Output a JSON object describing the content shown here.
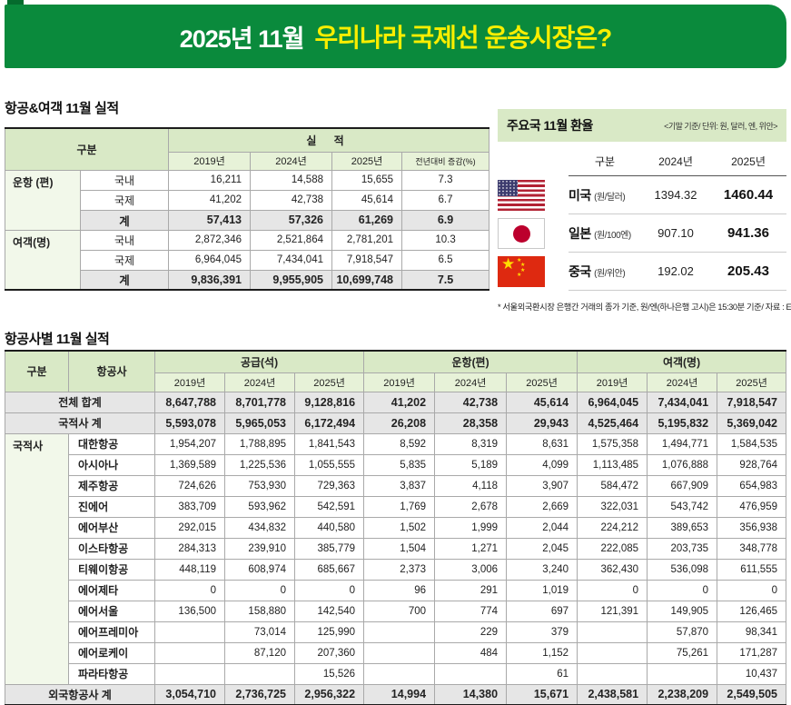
{
  "colors": {
    "banner_green": "#0a8a3c",
    "banner_yellow": "#f9ee00",
    "header_green": "#d9e9c6",
    "subheader_green": "#e7f2d8",
    "label_green": "#f2f8ea",
    "total_gray": "#e6e6e6"
  },
  "banner": {
    "prefix": "2025년 11월",
    "title": "우리나라 국제선 운송시장은?"
  },
  "summary_table": {
    "title": "항공&여객 11월 실적",
    "header": {
      "gubun": "구분",
      "siljeok": "실 적",
      "years": [
        "2019년",
        "2024년",
        "2025년",
        "전년대비 증감(%)"
      ]
    },
    "groups": [
      {
        "label": "운항 (편)",
        "rows": [
          {
            "name": "국내",
            "values": [
              "16,211",
              "14,588",
              "15,655",
              "7.3"
            ],
            "total": false
          },
          {
            "name": "국제",
            "values": [
              "41,202",
              "42,738",
              "45,614",
              "6.7"
            ],
            "total": false
          },
          {
            "name": "계",
            "values": [
              "57,413",
              "57,326",
              "61,269",
              "6.9"
            ],
            "total": true
          }
        ]
      },
      {
        "label": "여객(명)",
        "rows": [
          {
            "name": "국내",
            "values": [
              "2,872,346",
              "2,521,864",
              "2,781,201",
              "10.3"
            ],
            "total": false
          },
          {
            "name": "국제",
            "values": [
              "6,964,045",
              "7,434,041",
              "7,918,547",
              "6.5"
            ],
            "total": false
          },
          {
            "name": "계",
            "values": [
              "9,836,391",
              "9,955,905",
              "10,699,748",
              "7.5"
            ],
            "total": true
          }
        ]
      }
    ]
  },
  "fx_panel": {
    "title": "주요국 11월 환율",
    "note": "<기말 기준/ 단위: 원, 달러, 엔, 위안>",
    "columns": [
      "구분",
      "2024년",
      "2025년"
    ],
    "rows": [
      {
        "flag": "us",
        "country": "미국",
        "unit": "(원/달러)",
        "y2024": "1394.32",
        "y2025": "1460.44"
      },
      {
        "flag": "jp",
        "country": "일본",
        "unit": "(원/100엔)",
        "y2024": "907.10",
        "y2025": "941.36"
      },
      {
        "flag": "cn",
        "country": "중국",
        "unit": "(원/위안)",
        "y2024": "192.02",
        "y2025": "205.43"
      }
    ],
    "footnote": "* 서울외국환시장 은행간 거래의 종가 기준, 원/엔(하나은행 고시)은 15:30분 기준/ 자료 : ECOS"
  },
  "airline_table": {
    "title": "항공사별 11월 실적",
    "gubun_label": "구분",
    "airline_label": "항공사",
    "national_label": "국적사",
    "col_groups": [
      "공급(석)",
      "운항(편)",
      "여객(명)"
    ],
    "years": [
      "2019년",
      "2024년",
      "2025년"
    ],
    "rows": [
      {
        "label": "전체 합계",
        "type": "total",
        "values": [
          "8,647,788",
          "8,701,778",
          "9,128,816",
          "41,202",
          "42,738",
          "45,614",
          "6,964,045",
          "7,434,041",
          "7,918,547"
        ]
      },
      {
        "label": "국적사 계",
        "type": "total",
        "values": [
          "5,593,078",
          "5,965,053",
          "6,172,494",
          "26,208",
          "28,358",
          "29,943",
          "4,525,464",
          "5,195,832",
          "5,369,042"
        ]
      },
      {
        "label": "대한항공",
        "type": "airline",
        "values": [
          "1,954,207",
          "1,788,895",
          "1,841,543",
          "8,592",
          "8,319",
          "8,631",
          "1,575,358",
          "1,494,771",
          "1,584,535"
        ]
      },
      {
        "label": "아시아나",
        "type": "airline",
        "values": [
          "1,369,589",
          "1,225,536",
          "1,055,555",
          "5,835",
          "5,189",
          "4,099",
          "1,113,485",
          "1,076,888",
          "928,764"
        ]
      },
      {
        "label": "제주항공",
        "type": "airline",
        "values": [
          "724,626",
          "753,930",
          "729,363",
          "3,837",
          "4,118",
          "3,907",
          "584,472",
          "667,909",
          "654,983"
        ]
      },
      {
        "label": "진에어",
        "type": "airline",
        "values": [
          "383,709",
          "593,962",
          "542,591",
          "1,769",
          "2,678",
          "2,669",
          "322,031",
          "543,742",
          "476,959"
        ]
      },
      {
        "label": "에어부산",
        "type": "airline",
        "values": [
          "292,015",
          "434,832",
          "440,580",
          "1,502",
          "1,999",
          "2,044",
          "224,212",
          "389,653",
          "356,938"
        ]
      },
      {
        "label": "이스타항공",
        "type": "airline",
        "values": [
          "284,313",
          "239,910",
          "385,779",
          "1,504",
          "1,271",
          "2,045",
          "222,085",
          "203,735",
          "348,778"
        ]
      },
      {
        "label": "티웨이항공",
        "type": "airline",
        "values": [
          "448,119",
          "608,974",
          "685,667",
          "2,373",
          "3,006",
          "3,240",
          "362,430",
          "536,098",
          "611,555"
        ]
      },
      {
        "label": "에어제타",
        "type": "airline",
        "values": [
          "0",
          "0",
          "0",
          "96",
          "291",
          "1,019",
          "0",
          "0",
          "0"
        ]
      },
      {
        "label": "에어서울",
        "type": "airline",
        "values": [
          "136,500",
          "158,880",
          "142,540",
          "700",
          "774",
          "697",
          "121,391",
          "149,905",
          "126,465"
        ]
      },
      {
        "label": "에어프레미아",
        "type": "airline",
        "values": [
          "",
          "73,014",
          "125,990",
          "",
          "229",
          "379",
          "",
          "57,870",
          "98,341"
        ]
      },
      {
        "label": "에어로케이",
        "type": "airline",
        "values": [
          "",
          "87,120",
          "207,360",
          "",
          "484",
          "1,152",
          "",
          "75,261",
          "171,287"
        ]
      },
      {
        "label": "파라타항공",
        "type": "airline",
        "values": [
          "",
          "",
          "15,526",
          "",
          "",
          "61",
          "",
          "",
          "10,437"
        ]
      },
      {
        "label": "외국항공사 계",
        "type": "total",
        "values": [
          "3,054,710",
          "2,736,725",
          "2,956,322",
          "14,994",
          "14,380",
          "15,671",
          "2,438,581",
          "2,238,209",
          "2,549,505"
        ]
      }
    ]
  }
}
